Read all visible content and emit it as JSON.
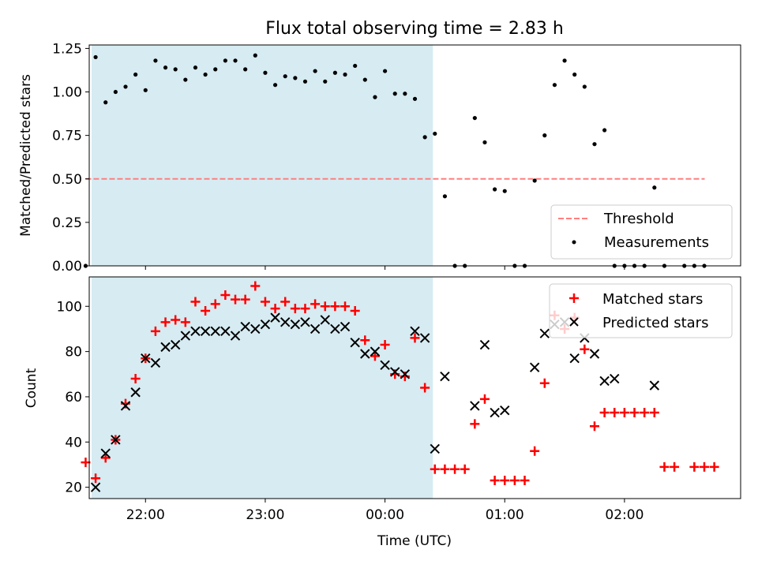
{
  "chart_data": [
    {
      "type": "scatter",
      "title": "Flux total observing time = 2.83 h",
      "xlabel": "",
      "ylabel": "Matched/Predicted stars",
      "ylim": [
        0,
        1.27
      ],
      "yticks": [
        "0.00",
        "0.25",
        "0.50",
        "0.75",
        "1.00",
        "1.25"
      ],
      "ytick_values": [
        0,
        0.25,
        0.5,
        0.75,
        1.0,
        1.25
      ],
      "xlim_hours": [
        21.53,
        2.97
      ],
      "highlight_span_hours": [
        21.55,
        0.4
      ],
      "highlight_color": "#add8e6",
      "threshold": {
        "name": "Threshold",
        "value": 0.5,
        "x_start": 21.5,
        "x_end": 2.67,
        "color": "#ff7f7f"
      },
      "series": [
        {
          "name": "Measurements",
          "color": "#000000",
          "points": [
            [
              "21:30",
              0.0
            ],
            [
              "21:35",
              1.2
            ],
            [
              "21:40",
              0.94
            ],
            [
              "21:45",
              1.0
            ],
            [
              "21:50",
              1.03
            ],
            [
              "21:55",
              1.1
            ],
            [
              "22:00",
              1.01
            ],
            [
              "22:05",
              1.18
            ],
            [
              "22:10",
              1.14
            ],
            [
              "22:15",
              1.13
            ],
            [
              "22:20",
              1.07
            ],
            [
              "22:25",
              1.14
            ],
            [
              "22:30",
              1.1
            ],
            [
              "22:35",
              1.13
            ],
            [
              "22:40",
              1.18
            ],
            [
              "22:45",
              1.18
            ],
            [
              "22:50",
              1.13
            ],
            [
              "22:55",
              1.21
            ],
            [
              "23:00",
              1.11
            ],
            [
              "23:05",
              1.04
            ],
            [
              "23:10",
              1.09
            ],
            [
              "23:15",
              1.08
            ],
            [
              "23:20",
              1.06
            ],
            [
              "23:25",
              1.12
            ],
            [
              "23:30",
              1.06
            ],
            [
              "23:35",
              1.11
            ],
            [
              "23:40",
              1.1
            ],
            [
              "23:45",
              1.15
            ],
            [
              "23:50",
              1.07
            ],
            [
              "23:55",
              0.97
            ],
            [
              "00:00",
              1.12
            ],
            [
              "00:05",
              0.99
            ],
            [
              "00:10",
              0.99
            ],
            [
              "00:15",
              0.96
            ],
            [
              "00:20",
              0.74
            ],
            [
              "00:25",
              0.76
            ],
            [
              "00:30",
              0.4
            ],
            [
              "00:35",
              0.0
            ],
            [
              "00:40",
              0.0
            ],
            [
              "00:45",
              0.85
            ],
            [
              "00:50",
              0.71
            ],
            [
              "00:55",
              0.44
            ],
            [
              "01:00",
              0.43
            ],
            [
              "01:05",
              0.0
            ],
            [
              "01:10",
              0.0
            ],
            [
              "01:15",
              0.49
            ],
            [
              "01:20",
              0.75
            ],
            [
              "01:25",
              1.04
            ],
            [
              "01:30",
              1.18
            ],
            [
              "01:35",
              1.1
            ],
            [
              "01:40",
              1.03
            ],
            [
              "01:45",
              0.7
            ],
            [
              "01:50",
              0.78
            ],
            [
              "01:55",
              0.0
            ],
            [
              "02:00",
              0.0
            ],
            [
              "02:05",
              0.0
            ],
            [
              "02:10",
              0.0
            ],
            [
              "02:15",
              0.45
            ],
            [
              "02:20",
              0.0
            ],
            [
              "02:30",
              0.0
            ],
            [
              "02:35",
              0.0
            ],
            [
              "02:40",
              0.0
            ]
          ]
        }
      ],
      "legend": {
        "position": "lower right",
        "entries": [
          "Threshold",
          "Measurements"
        ]
      }
    },
    {
      "type": "scatter",
      "title": "",
      "xlabel": "Time (UTC)",
      "ylabel": "Count",
      "ylim": [
        15,
        113
      ],
      "yticks": [
        "20",
        "40",
        "60",
        "80",
        "100"
      ],
      "ytick_values": [
        20,
        40,
        60,
        80,
        100
      ],
      "xlim_hours": [
        21.53,
        2.97
      ],
      "xticks": [
        "22:00",
        "23:00",
        "00:00",
        "01:00",
        "02:00"
      ],
      "xtick_hours": [
        22,
        23,
        0,
        1,
        2
      ],
      "highlight_span_hours": [
        21.55,
        0.4
      ],
      "series": [
        {
          "name": "Matched stars",
          "marker": "+",
          "color": "#ff0000",
          "points": [
            [
              "21:30",
              31
            ],
            [
              "21:35",
              24
            ],
            [
              "21:40",
              33
            ],
            [
              "21:45",
              41
            ],
            [
              "21:50",
              57
            ],
            [
              "21:55",
              68
            ],
            [
              "22:00",
              77
            ],
            [
              "22:05",
              89
            ],
            [
              "22:10",
              93
            ],
            [
              "22:15",
              94
            ],
            [
              "22:20",
              93
            ],
            [
              "22:25",
              102
            ],
            [
              "22:30",
              98
            ],
            [
              "22:35",
              101
            ],
            [
              "22:40",
              105
            ],
            [
              "22:45",
              103
            ],
            [
              "22:50",
              103
            ],
            [
              "22:55",
              109
            ],
            [
              "23:00",
              102
            ],
            [
              "23:05",
              99
            ],
            [
              "23:10",
              102
            ],
            [
              "23:15",
              99
            ],
            [
              "23:20",
              99
            ],
            [
              "23:25",
              101
            ],
            [
              "23:30",
              100
            ],
            [
              "23:35",
              100
            ],
            [
              "23:40",
              100
            ],
            [
              "23:45",
              98
            ],
            [
              "23:50",
              85
            ],
            [
              "23:55",
              78
            ],
            [
              "00:00",
              83
            ],
            [
              "00:05",
              70
            ],
            [
              "00:10",
              69
            ],
            [
              "00:15",
              86
            ],
            [
              "00:20",
              64
            ],
            [
              "00:25",
              28
            ],
            [
              "00:30",
              28
            ],
            [
              "00:35",
              28
            ],
            [
              "00:40",
              28
            ],
            [
              "00:45",
              48
            ],
            [
              "00:50",
              59
            ],
            [
              "00:55",
              23
            ],
            [
              "01:00",
              23
            ],
            [
              "01:05",
              23
            ],
            [
              "01:10",
              23
            ],
            [
              "01:15",
              36
            ],
            [
              "01:20",
              66
            ],
            [
              "01:25",
              96
            ],
            [
              "01:30",
              90
            ],
            [
              "01:35",
              95
            ],
            [
              "01:40",
              81
            ],
            [
              "01:45",
              47
            ],
            [
              "01:50",
              53
            ],
            [
              "01:55",
              53
            ],
            [
              "02:00",
              53
            ],
            [
              "02:05",
              53
            ],
            [
              "02:10",
              53
            ],
            [
              "02:15",
              53
            ],
            [
              "02:20",
              29
            ],
            [
              "02:25",
              29
            ],
            [
              "02:35",
              29
            ],
            [
              "02:40",
              29
            ],
            [
              "02:45",
              29
            ]
          ]
        },
        {
          "name": "Predicted stars",
          "marker": "x",
          "color": "#000000",
          "points": [
            [
              "21:35",
              20
            ],
            [
              "21:40",
              35
            ],
            [
              "21:45",
              41
            ],
            [
              "21:50",
              56
            ],
            [
              "21:55",
              62
            ],
            [
              "22:00",
              77
            ],
            [
              "22:05",
              75
            ],
            [
              "22:10",
              82
            ],
            [
              "22:15",
              83
            ],
            [
              "22:20",
              87
            ],
            [
              "22:25",
              89
            ],
            [
              "22:30",
              89
            ],
            [
              "22:35",
              89
            ],
            [
              "22:40",
              89
            ],
            [
              "22:45",
              87
            ],
            [
              "22:50",
              91
            ],
            [
              "22:55",
              90
            ],
            [
              "23:00",
              92
            ],
            [
              "23:05",
              95
            ],
            [
              "23:10",
              93
            ],
            [
              "23:15",
              92
            ],
            [
              "23:20",
              93
            ],
            [
              "23:25",
              90
            ],
            [
              "23:30",
              94
            ],
            [
              "23:35",
              90
            ],
            [
              "23:40",
              91
            ],
            [
              "23:45",
              84
            ],
            [
              "23:50",
              79
            ],
            [
              "23:55",
              80
            ],
            [
              "00:00",
              74
            ],
            [
              "00:05",
              71
            ],
            [
              "00:10",
              70
            ],
            [
              "00:15",
              89
            ],
            [
              "00:20",
              86
            ],
            [
              "00:25",
              37
            ],
            [
              "00:30",
              69
            ],
            [
              "00:45",
              56
            ],
            [
              "00:50",
              83
            ],
            [
              "00:55",
              53
            ],
            [
              "01:00",
              54
            ],
            [
              "01:15",
              73
            ],
            [
              "01:20",
              88
            ],
            [
              "01:25",
              92
            ],
            [
              "01:30",
              93
            ],
            [
              "01:35",
              77
            ],
            [
              "01:40",
              86
            ],
            [
              "01:45",
              79
            ],
            [
              "01:50",
              67
            ],
            [
              "01:55",
              68
            ],
            [
              "02:15",
              65
            ]
          ]
        }
      ],
      "legend": {
        "position": "upper right",
        "entries": [
          "Matched stars",
          "Predicted stars"
        ]
      }
    }
  ]
}
